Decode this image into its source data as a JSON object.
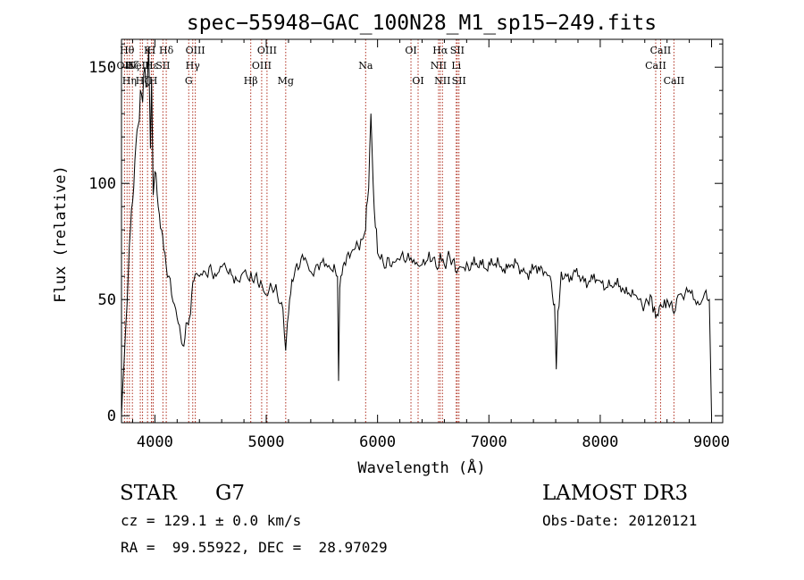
{
  "chart_data": {
    "type": "line",
    "title": "spec−55948−GAC_100N28_M1_sp15−249.fits",
    "xlabel": "Wavelength (Å)",
    "ylabel": "Flux (relative)",
    "xlim": [
      3700,
      9100
    ],
    "ylim": [
      -3,
      162
    ],
    "x_ticks": [
      4000,
      5000,
      6000,
      7000,
      8000,
      9000
    ],
    "y_ticks": [
      0,
      50,
      100,
      150
    ],
    "grid": false,
    "line_color": "#000000",
    "marker_color": "#b03020",
    "series": [
      {
        "x": [
          3700,
          3740,
          3780,
          3820,
          3850,
          3870,
          3890,
          3910,
          3930,
          3945,
          3960,
          3970,
          3985,
          4000,
          4030,
          4060,
          4100,
          4150,
          4200,
          4230,
          4260,
          4290,
          4310,
          4350,
          4400,
          4450,
          4500,
          4550,
          4600,
          4650,
          4700,
          4750,
          4800,
          4850,
          4900,
          4950,
          5000,
          5050,
          5100,
          5150,
          5175,
          5190,
          5210,
          5250,
          5300,
          5350,
          5400,
          5450,
          5500,
          5550,
          5600,
          5640,
          5650,
          5660,
          5700,
          5750,
          5800,
          5850,
          5880,
          5893,
          5900,
          5920,
          5940,
          5960,
          6000,
          6050,
          6100,
          6150,
          6200,
          6250,
          6300,
          6350,
          6400,
          6450,
          6500,
          6550,
          6563,
          6600,
          6650,
          6700,
          6750,
          6800,
          6900,
          7000,
          7100,
          7200,
          7300,
          7400,
          7500,
          7550,
          7590,
          7605,
          7620,
          7650,
          7700,
          7800,
          7900,
          8000,
          8100,
          8200,
          8300,
          8350,
          8400,
          8450,
          8498,
          8542,
          8600,
          8662,
          8700,
          8750,
          8800,
          8850,
          8900,
          8950,
          8980,
          9000
        ],
        "y": [
          0,
          40,
          80,
          110,
          125,
          140,
          135,
          150,
          142,
          158,
          115,
          145,
          95,
          105,
          90,
          80,
          65,
          52,
          42,
          35,
          30,
          40,
          42,
          58,
          60,
          62,
          65,
          60,
          64,
          62,
          60,
          58,
          62,
          58,
          60,
          58,
          52,
          55,
          52,
          46,
          28,
          40,
          50,
          60,
          64,
          68,
          62,
          65,
          66,
          64,
          62,
          60,
          15,
          55,
          66,
          68,
          72,
          76,
          78,
          80,
          90,
          98,
          130,
          100,
          70,
          66,
          68,
          66,
          67,
          66,
          68,
          66,
          65,
          67,
          68,
          64,
          70,
          65,
          68,
          62,
          64,
          66,
          64,
          66,
          64,
          65,
          62,
          63,
          62,
          60,
          48,
          20,
          45,
          62,
          60,
          60,
          58,
          58,
          56,
          55,
          52,
          50,
          48,
          52,
          42,
          48,
          50,
          44,
          52,
          50,
          54,
          50,
          48,
          54,
          50,
          0
        ]
      }
    ],
    "lines": [
      {
        "wave": 3727,
        "label": "OII",
        "row": 2
      },
      {
        "wave": 3750,
        "label": "Hθ",
        "row": 1
      },
      {
        "wave": 3771,
        "label": "Hη",
        "row": 3
      },
      {
        "wave": 3798,
        "label": "Hζ",
        "row": 2
      },
      {
        "wave": 3869,
        "label": "NeIII",
        "row": 2
      },
      {
        "wave": 3889,
        "label": "Hζ",
        "row": 3
      },
      {
        "wave": 3934,
        "label": "K",
        "row": 1
      },
      {
        "wave": 3969,
        "label": "H",
        "row": 1
      },
      {
        "wave": 3970,
        "label": "Hε",
        "row": 2
      },
      {
        "wave": 3985,
        "label": "H",
        "row": 3
      },
      {
        "wave": 4072,
        "label": "SII",
        "row": 2
      },
      {
        "wave": 4102,
        "label": "Hδ",
        "row": 1
      },
      {
        "wave": 4304,
        "label": "G",
        "row": 3
      },
      {
        "wave": 4340,
        "label": "Hγ",
        "row": 2
      },
      {
        "wave": 4363,
        "label": "OIII",
        "row": 1
      },
      {
        "wave": 4861,
        "label": "Hβ",
        "row": 3
      },
      {
        "wave": 4959,
        "label": "OIII",
        "row": 2
      },
      {
        "wave": 5007,
        "label": "OIII",
        "row": 1
      },
      {
        "wave": 5175,
        "label": "Mg",
        "row": 3
      },
      {
        "wave": 5893,
        "label": "Na",
        "row": 2
      },
      {
        "wave": 6300,
        "label": "OI",
        "row": 1
      },
      {
        "wave": 6364,
        "label": "OI",
        "row": 3
      },
      {
        "wave": 6548,
        "label": "NII",
        "row": 2
      },
      {
        "wave": 6563,
        "label": "Hα",
        "row": 1
      },
      {
        "wave": 6583,
        "label": "NII",
        "row": 3
      },
      {
        "wave": 6707,
        "label": "Li",
        "row": 2
      },
      {
        "wave": 6716,
        "label": "SII",
        "row": 1
      },
      {
        "wave": 6731,
        "label": "SII",
        "row": 3
      },
      {
        "wave": 8498,
        "label": "CaII",
        "row": 2
      },
      {
        "wave": 8542,
        "label": "CaII",
        "row": 1
      },
      {
        "wave": 8662,
        "label": "CaII",
        "row": 3
      }
    ]
  },
  "info": {
    "object_class": "STAR",
    "subclass": "G7",
    "survey": "LAMOST DR3",
    "redshift": "cz = 129.1 ± 0.0 km/s",
    "obs_date": "Obs-Date: 20120121",
    "coords": "RA =  99.55922, DEC =  28.97029"
  }
}
